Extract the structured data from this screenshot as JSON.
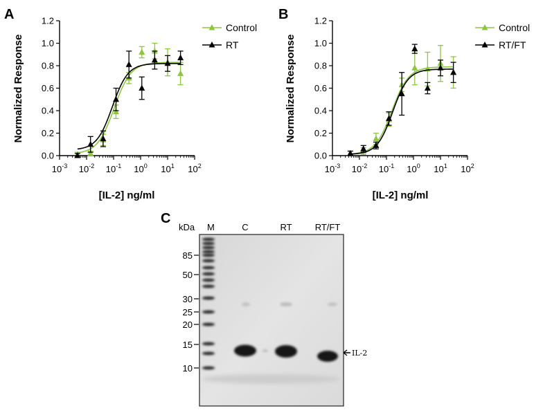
{
  "panels": [
    {
      "letter": "A",
      "ylabel": "Normalized Response",
      "xlabel": "[IL-2] ng/ml",
      "legend": [
        "Control",
        "RT"
      ]
    },
    {
      "letter": "B",
      "ylabel": "Normalized Response",
      "xlabel": "[IL-2] ng/ml",
      "legend": [
        "Control",
        "RT/FT"
      ]
    },
    {
      "letter": "C"
    }
  ],
  "chart_data": [
    {
      "type": "scatter",
      "panel": "A",
      "xscale": "log",
      "xlim": [
        0.001,
        100
      ],
      "ylim": [
        0,
        1.2
      ],
      "x_ticks": [
        "10-3",
        "10-2",
        "10-1",
        "100",
        "101",
        "102"
      ],
      "y_ticks": [
        "0.0",
        "0.2",
        "0.4",
        "0.6",
        "0.8",
        "1.0",
        "1.2"
      ],
      "xlabel": "[IL-2] ng/ml",
      "ylabel": "Normalized Response",
      "legend_position": "top-right",
      "series": [
        {
          "name": "Control",
          "color": "#8dc63f",
          "marker": "triangle",
          "x": [
            0.0046,
            0.014,
            0.041,
            0.123,
            0.37,
            1.11,
            3.33,
            10,
            30
          ],
          "y": [
            0.01,
            0.02,
            0.14,
            0.39,
            0.69,
            0.92,
            0.93,
            0.83,
            0.73
          ],
          "err": [
            0.02,
            0.02,
            0.05,
            0.06,
            0.05,
            0.05,
            0.07,
            0.12,
            0.1
          ],
          "fit": {
            "bottom": 0.015,
            "top": 0.83,
            "ec50": 0.105,
            "hill": 1.4
          }
        },
        {
          "name": "RT",
          "color": "#000000",
          "marker": "triangle",
          "x": [
            0.0046,
            0.014,
            0.041,
            0.123,
            0.37,
            1.11,
            3.33,
            10,
            30
          ],
          "y": [
            0.0,
            0.1,
            0.15,
            0.5,
            0.81,
            0.6,
            0.85,
            0.82,
            0.87
          ],
          "err": [
            0.02,
            0.07,
            0.07,
            0.1,
            0.12,
            0.1,
            0.08,
            0.07,
            0.06
          ],
          "fit": {
            "bottom": 0.05,
            "top": 0.82,
            "ec50": 0.09,
            "hill": 1.5
          }
        }
      ]
    },
    {
      "type": "scatter",
      "panel": "B",
      "xscale": "log",
      "xlim": [
        0.001,
        100
      ],
      "ylim": [
        0,
        1.2
      ],
      "x_ticks": [
        "10-3",
        "10-2",
        "10-1",
        "100",
        "101",
        "102"
      ],
      "y_ticks": [
        "0.0",
        "0.2",
        "0.4",
        "0.6",
        "0.8",
        "1.0",
        "1.2"
      ],
      "xlabel": "[IL-2] ng/ml",
      "ylabel": "Normalized Response",
      "legend_position": "top-right",
      "series": [
        {
          "name": "Control",
          "color": "#8dc63f",
          "marker": "triangle",
          "x": [
            0.0046,
            0.014,
            0.041,
            0.123,
            0.37,
            1.11,
            3.33,
            10,
            30
          ],
          "y": [
            0.02,
            0.04,
            0.15,
            0.32,
            0.63,
            0.78,
            0.77,
            0.82,
            0.74
          ],
          "err": [
            0.02,
            0.03,
            0.05,
            0.06,
            0.06,
            0.15,
            0.15,
            0.16,
            0.14
          ],
          "fit": {
            "bottom": 0.01,
            "top": 0.79,
            "ec50": 0.16,
            "hill": 1.4
          }
        },
        {
          "name": "RT/FT",
          "color": "#000000",
          "marker": "triangle",
          "x": [
            0.0046,
            0.014,
            0.041,
            0.123,
            0.37,
            1.11,
            3.33,
            10,
            30
          ],
          "y": [
            0.02,
            0.06,
            0.09,
            0.33,
            0.55,
            0.95,
            0.6,
            0.78,
            0.74
          ],
          "err": [
            0.02,
            0.03,
            0.03,
            0.06,
            0.19,
            0.04,
            0.05,
            0.07,
            0.09
          ],
          "fit": {
            "bottom": 0.01,
            "top": 0.77,
            "ec50": 0.17,
            "hill": 1.5
          }
        }
      ]
    },
    {
      "type": "gel",
      "panel": "C",
      "unit_label": "kDa",
      "marker_lane_label": "M",
      "lane_labels": [
        "C",
        "RT",
        "RT/FT"
      ],
      "marker_kda": [
        "85",
        "50",
        "30",
        "25",
        "20",
        "15",
        "10"
      ],
      "band_annotation": "IL-2"
    }
  ]
}
